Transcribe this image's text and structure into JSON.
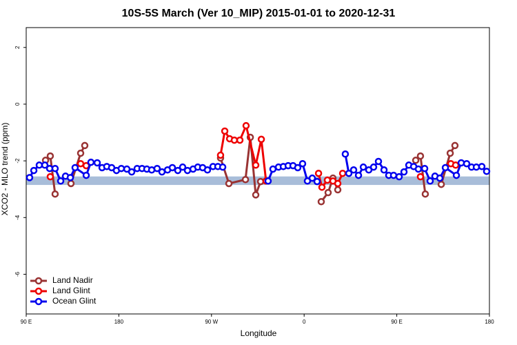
{
  "chart_data": {
    "type": "line",
    "title": "10S-5S March (Ver 10_MIP)   2015-01-01 to 2020-12-31",
    "x_label": "Longitude",
    "y_label": "XCO2 - MLO trend (ppm)",
    "xlim": [
      90,
      540
    ],
    "ylim": [
      -7.4,
      2.7
    ],
    "xticks": [
      {
        "value": 90,
        "label": "90 E"
      },
      180,
      {
        "value": 270,
        "label": "90 W"
      },
      {
        "value": 360,
        "label": "0"
      },
      {
        "value": 450,
        "label": "90 E"
      },
      {
        "value": 540,
        "label": "180"
      }
    ],
    "yticks": [
      2,
      0,
      -2,
      -4,
      -6
    ],
    "legend": "bottomleft",
    "band": {
      "color": "#a8bdd9",
      "values": [
        -2.55,
        -2.85
      ]
    },
    "series": [
      {
        "name": "Land Nadir",
        "color": "#993333",
        "x": [
          108.8,
          113.4,
          118.1,
          null,
          133.5,
          142.9,
          146.9,
          null,
          278.8,
          286.9,
          303.0,
          307.7,
          313.0,
          317.7,
          null,
          376.6,
          383.3,
          388.0,
          392.7,
          null,
          468.4,
          473.0,
          477.7,
          null,
          493.2,
          501.9,
          506.5
        ],
        "values": [
          -1.98,
          -1.83,
          -3.17,
          null,
          -2.8,
          -1.73,
          -1.46,
          null,
          -1.9,
          -2.8,
          -2.66,
          -1.17,
          -3.2,
          -2.73,
          null,
          -3.44,
          -3.12,
          -2.61,
          -3.02,
          null,
          -1.98,
          -1.83,
          -3.17,
          null,
          -2.83,
          -1.73,
          -1.46
        ]
      },
      {
        "name": "Land Glint",
        "color": "#ee0000",
        "x": [
          113.4,
          null,
          142.9,
          148.3,
          null,
          278.8,
          282.9,
          287.6,
          292.2,
          297.6,
          303.6,
          313.0,
          318.4,
          323.0,
          null,
          374.0,
          377.3,
          382.6,
          388.0,
          392.7,
          397.4,
          null,
          473.0,
          null,
          502.5,
          507.2
        ],
        "values": [
          -2.56,
          null,
          -2.1,
          -2.17,
          null,
          -1.8,
          -0.95,
          -1.22,
          -1.27,
          -1.27,
          -0.76,
          -2.15,
          -1.24,
          -2.71,
          null,
          -2.44,
          -2.93,
          -2.68,
          -2.71,
          -2.8,
          -2.44,
          null,
          -2.56,
          null,
          -2.1,
          -2.15
        ]
      },
      {
        "name": "Ocean Glint",
        "color": "#0000ee",
        "x": [
          93.3,
          97.4,
          102.7,
          108.1,
          112.8,
          118.1,
          123.5,
          128.2,
          132.9,
          137.5,
          148.3,
          152.9,
          159.0,
          163.7,
          168.3,
          173.0,
          177.7,
          182.4,
          187.8,
          192.5,
          197.8,
          202.5,
          207.2,
          211.9,
          217.2,
          221.9,
          227.3,
          232.0,
          237.3,
          242.0,
          246.7,
          252.1,
          256.7,
          261.4,
          266.1,
          271.5,
          276.2,
          280.9,
          null,
          325.0,
          329.7,
          335.1,
          339.8,
          344.5,
          349.2,
          353.8,
          358.5,
          363.2,
          367.9,
          372.6,
          null,
          400.0,
          403.4,
          408.1,
          412.8,
          417.5,
          422.8,
          427.5,
          432.2,
          437.6,
          442.2,
          446.9,
          452.3,
          457.0,
          461.7,
          466.4,
          471.0,
          477.1,
          482.4,
          487.1,
          491.8,
          497.2,
          507.9,
          512.6,
          517.9,
          522.6,
          527.3,
          532.6,
          537.3
        ],
        "values": [
          -2.59,
          -2.34,
          -2.15,
          -2.15,
          -2.27,
          -2.27,
          -2.71,
          -2.54,
          -2.59,
          -2.24,
          -2.51,
          -2.05,
          -2.07,
          -2.24,
          -2.2,
          -2.24,
          -2.34,
          -2.27,
          -2.29,
          -2.39,
          -2.27,
          -2.27,
          -2.29,
          -2.32,
          -2.27,
          -2.39,
          -2.32,
          -2.24,
          -2.34,
          -2.22,
          -2.34,
          -2.29,
          -2.22,
          -2.24,
          -2.32,
          -2.2,
          -2.2,
          -2.22,
          null,
          -2.71,
          -2.29,
          -2.22,
          -2.2,
          -2.17,
          -2.17,
          -2.24,
          -2.1,
          -2.71,
          -2.61,
          -2.73,
          null,
          -1.76,
          -2.44,
          -2.32,
          -2.51,
          -2.22,
          -2.32,
          -2.22,
          -2.02,
          -2.32,
          -2.51,
          -2.51,
          -2.56,
          -2.39,
          -2.15,
          -2.2,
          -2.29,
          -2.27,
          -2.71,
          -2.54,
          -2.61,
          -2.24,
          -2.51,
          -2.07,
          -2.1,
          -2.22,
          -2.22,
          -2.2,
          -2.37
        ]
      }
    ]
  }
}
